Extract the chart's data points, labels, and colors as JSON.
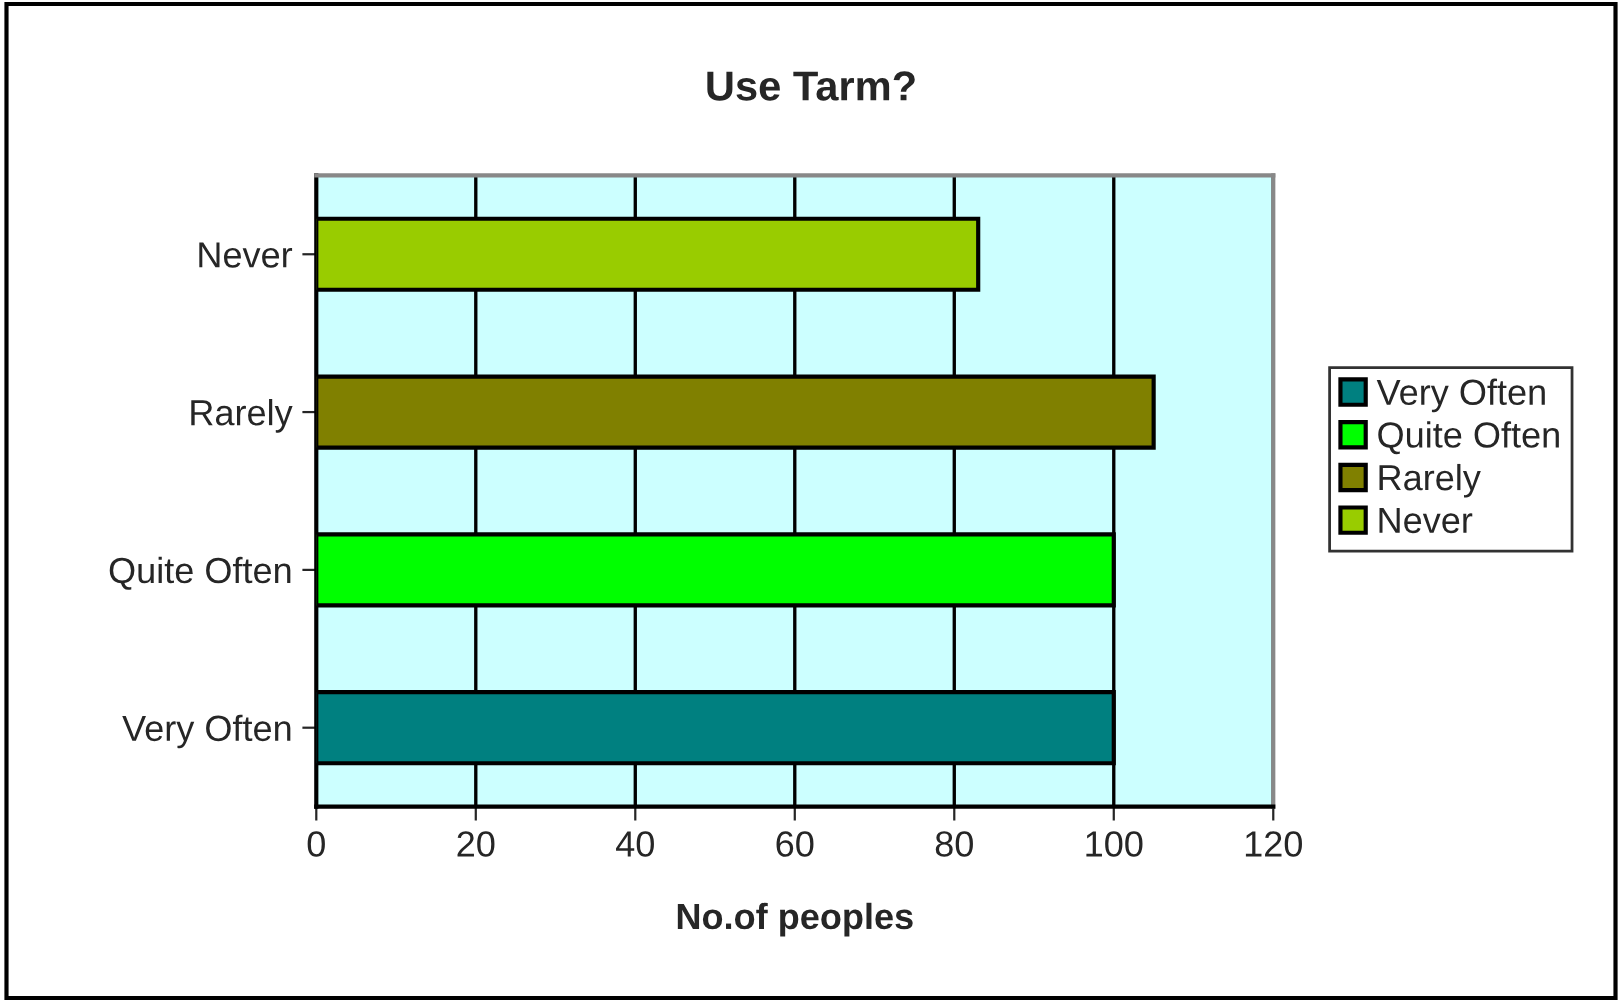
{
  "chart_data": {
    "type": "bar",
    "orientation": "horizontal",
    "title": "Use Tarm?",
    "xlabel": "No.of peoples",
    "categories": [
      "Never",
      "Rarely",
      "Quite Often",
      "Very Often"
    ],
    "series": [
      {
        "name": "Very Often",
        "color": "#008080",
        "values": [
          null,
          null,
          null,
          100
        ]
      },
      {
        "name": "Quite Often",
        "color": "#00ff00",
        "values": [
          null,
          null,
          100,
          null
        ]
      },
      {
        "name": "Rarely",
        "color": "#808000",
        "values": [
          null,
          105,
          null,
          null
        ]
      },
      {
        "name": "Never",
        "color": "#99cc00",
        "values": [
          83,
          null,
          null,
          null
        ]
      }
    ],
    "xlim": [
      0,
      120
    ],
    "xticks": [
      0,
      20,
      40,
      60,
      80,
      100,
      120
    ],
    "grid": "x",
    "legend": "right"
  }
}
